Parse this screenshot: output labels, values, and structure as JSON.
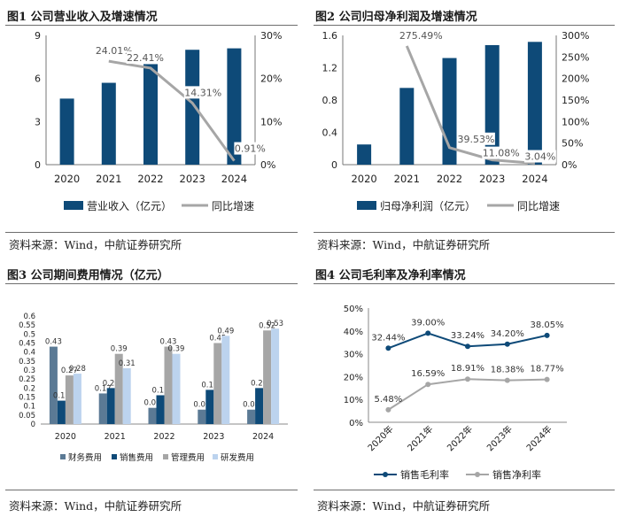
{
  "colors": {
    "navy": "#0e4a78",
    "gray": "#a6a6a6",
    "c_fin": "#5b7a95",
    "c_sales": "#0e4a78",
    "c_mgmt": "#a6a6a6",
    "c_rd": "#bcd3ee"
  },
  "chart_data": [
    {
      "id": "fig1",
      "type": "bar+line",
      "title": "图1 公司营业收入及增速情况",
      "categories": [
        "2020",
        "2021",
        "2022",
        "2023",
        "2024"
      ],
      "bar_series": {
        "name": "营业收入（亿元）",
        "values": [
          4.6,
          5.7,
          7.0,
          8.0,
          8.1
        ]
      },
      "line_series": {
        "name": "同比增速",
        "values": [
          null,
          24.01,
          22.41,
          14.31,
          0.91
        ],
        "labels": [
          "",
          "24.01%",
          "22.41%",
          "14.31%",
          "0.91%"
        ]
      },
      "y_left": {
        "ticks": [
          "0",
          "3",
          "6",
          "9"
        ],
        "range": [
          0,
          9
        ]
      },
      "y_right": {
        "ticks": [
          "0%",
          "10%",
          "20%",
          "30%"
        ],
        "range": [
          0,
          30
        ]
      },
      "source": "资料来源：Wind，中航证券研究所"
    },
    {
      "id": "fig2",
      "type": "bar+line",
      "title": "图2 公司归母净利润及增速情况",
      "categories": [
        "2020",
        "2021",
        "2022",
        "2023",
        "2024"
      ],
      "bar_series": {
        "name": "归母净利润（亿元）",
        "values": [
          0.25,
          0.95,
          1.32,
          1.48,
          1.52
        ]
      },
      "line_series": {
        "name": "同比增速",
        "values": [
          null,
          275.49,
          39.53,
          11.08,
          3.04
        ],
        "labels": [
          "",
          "275.49%",
          "39.53%",
          "11.08%",
          "3.04%"
        ]
      },
      "y_left": {
        "ticks": [
          "0",
          "0.4",
          "0.8",
          "1.2",
          "1.6"
        ],
        "range": [
          0,
          1.6
        ]
      },
      "y_right": {
        "ticks": [
          "0%",
          "50%",
          "100%",
          "150%",
          "200%",
          "250%",
          "300%"
        ],
        "range": [
          0,
          300
        ]
      },
      "source": "资料来源：Wind，中航证券研究所"
    },
    {
      "id": "fig3",
      "type": "bar",
      "title": "图3 公司期间费用情况（亿元）",
      "categories": [
        "2020",
        "2021",
        "2022",
        "2023",
        "2024"
      ],
      "series": [
        {
          "name": "财务费用",
          "values": [
            0.43,
            0.17,
            0.09,
            0.08,
            0.08
          ],
          "labels": [
            "0.43",
            "0.17",
            "0.09",
            "0.08",
            "0.08"
          ]
        },
        {
          "name": "销售费用",
          "values": [
            0.13,
            0.2,
            0.16,
            0.19,
            0.2
          ],
          "labels": [
            "0.13",
            "0.20",
            "0.16",
            "0.19",
            "0.20"
          ]
        },
        {
          "name": "管理费用",
          "values": [
            0.27,
            0.39,
            0.43,
            0.45,
            0.52
          ],
          "labels": [
            "0.27",
            "0.39",
            "0.43",
            "0.45",
            "0.52"
          ]
        },
        {
          "name": "研发费用",
          "values": [
            0.28,
            0.31,
            0.39,
            0.49,
            0.53
          ],
          "labels": [
            "0.28",
            "0.31",
            "0.39",
            "0.49",
            "0.53"
          ]
        }
      ],
      "y": {
        "ticks": [
          "0",
          "0.05",
          "0.1",
          "0.15",
          "0.2",
          "0.25",
          "0.3",
          "0.35",
          "0.4",
          "0.45",
          "0.5",
          "0.55",
          "0.6"
        ],
        "range": [
          0,
          0.6
        ]
      },
      "source": "资料来源：Wind，中航证券研究所"
    },
    {
      "id": "fig4",
      "type": "line",
      "title": "图4 公司毛利率及净利率情况",
      "categories": [
        "2020年",
        "2021年",
        "2022年",
        "2023年",
        "2024年"
      ],
      "series": [
        {
          "name": "销售毛利率",
          "values": [
            32.44,
            39.0,
            33.24,
            34.2,
            38.05
          ],
          "labels": [
            "32.44%",
            "39.00%",
            "33.24%",
            "34.20%",
            "38.05%"
          ]
        },
        {
          "name": "销售净利率",
          "values": [
            5.48,
            16.59,
            18.91,
            18.38,
            18.77
          ],
          "labels": [
            "5.48%",
            "16.59%",
            "18.91%",
            "18.38%",
            "18.77%"
          ]
        }
      ],
      "y": {
        "ticks": [
          "0%",
          "10%",
          "20%",
          "30%",
          "40%",
          "50%"
        ],
        "range": [
          0,
          50
        ]
      },
      "source": "资料来源：Wind，中航证券研究所"
    }
  ]
}
